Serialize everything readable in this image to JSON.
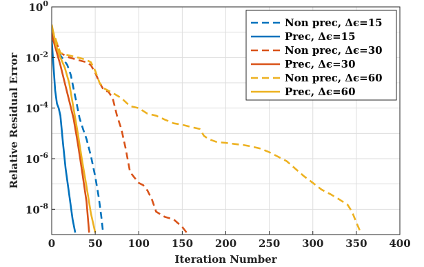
{
  "chart_data": {
    "type": "line",
    "xlabel": "Iteration Number",
    "ylabel": "Relative Residual Error",
    "xlim": [
      0,
      400
    ],
    "ylim_exp": [
      -9,
      0
    ],
    "y_scale": "log",
    "grid": true,
    "legend_position": "top-right",
    "x_ticks": [
      "0",
      "50",
      "100",
      "150",
      "200",
      "250",
      "300",
      "350",
      "400"
    ],
    "y_ticks": [
      {
        "base": "10",
        "exp": "0"
      },
      {
        "base": "10",
        "exp": "-2"
      },
      {
        "base": "10",
        "exp": "-4"
      },
      {
        "base": "10",
        "exp": "-6"
      },
      {
        "base": "10",
        "exp": "-8"
      }
    ],
    "series": [
      {
        "name": "Non prec, Δϵ=15",
        "color": "#0072BD",
        "dash": true,
        "points": [
          [
            0,
            0.1
          ],
          [
            3,
            0.04
          ],
          [
            6,
            0.02
          ],
          [
            10,
            0.012
          ],
          [
            14,
            0.008
          ],
          [
            18,
            0.005
          ],
          [
            22,
            0.002
          ],
          [
            25,
            0.0006
          ],
          [
            28,
            0.0002
          ],
          [
            32,
            4e-05
          ],
          [
            36,
            1.5e-05
          ],
          [
            40,
            6e-06
          ],
          [
            45,
            1.3e-06
          ],
          [
            50,
            2e-07
          ],
          [
            54,
            3e-08
          ],
          [
            57,
            5e-09
          ],
          [
            59,
            1.2e-09
          ]
        ]
      },
      {
        "name": "Prec,  Δϵ=15",
        "color": "#0072BD",
        "dash": false,
        "points": [
          [
            0,
            0.05
          ],
          [
            2,
            0.005
          ],
          [
            4,
            0.0005
          ],
          [
            6,
            0.00015
          ],
          [
            8,
            0.0001
          ],
          [
            10,
            5e-05
          ],
          [
            13,
            4e-06
          ],
          [
            16,
            4e-07
          ],
          [
            20,
            4e-08
          ],
          [
            24,
            4e-09
          ],
          [
            27,
            1.2e-09
          ]
        ]
      },
      {
        "name": "Non prec, Δϵ=30",
        "color": "#D95319",
        "dash": true,
        "points": [
          [
            0,
            0.12
          ],
          [
            10,
            0.015
          ],
          [
            20,
            0.01
          ],
          [
            30,
            0.008
          ],
          [
            40,
            0.0065
          ],
          [
            45,
            0.005
          ],
          [
            50,
            0.0025
          ],
          [
            55,
            0.001
          ],
          [
            60,
            0.0005
          ],
          [
            65,
            0.00045
          ],
          [
            70,
            0.00025
          ],
          [
            75,
            5e-05
          ],
          [
            80,
            1.5e-05
          ],
          [
            85,
            2.5e-06
          ],
          [
            90,
            3e-07
          ],
          [
            95,
            1.8e-07
          ],
          [
            100,
            1.1e-07
          ],
          [
            105,
            9e-08
          ],
          [
            110,
            5.5e-08
          ],
          [
            115,
            2.5e-08
          ],
          [
            120,
            8e-09
          ],
          [
            130,
            5e-09
          ],
          [
            140,
            4e-09
          ],
          [
            150,
            2e-09
          ],
          [
            155,
            1.2e-09
          ]
        ]
      },
      {
        "name": "Prec, Δϵ=30",
        "color": "#D95319",
        "dash": false,
        "points": [
          [
            0,
            0.08
          ],
          [
            5,
            0.02
          ],
          [
            10,
            0.005
          ],
          [
            15,
            0.001
          ],
          [
            20,
            0.0002
          ],
          [
            25,
            4e-05
          ],
          [
            30,
            4e-06
          ],
          [
            35,
            3e-07
          ],
          [
            40,
            2e-08
          ],
          [
            43,
            1.2e-09
          ]
        ]
      },
      {
        "name": "Non prec, Δϵ=60",
        "color": "#EDB120",
        "dash": true,
        "points": [
          [
            0,
            0.15
          ],
          [
            10,
            0.015
          ],
          [
            20,
            0.012
          ],
          [
            30,
            0.01
          ],
          [
            40,
            0.008
          ],
          [
            45,
            0.0065
          ],
          [
            50,
            0.003
          ],
          [
            55,
            0.001
          ],
          [
            60,
            0.0006
          ],
          [
            70,
            0.0004
          ],
          [
            80,
            0.00025
          ],
          [
            90,
            0.00012
          ],
          [
            100,
            0.0001
          ],
          [
            110,
            6e-05
          ],
          [
            120,
            5e-05
          ],
          [
            130,
            3.5e-05
          ],
          [
            140,
            2.5e-05
          ],
          [
            150,
            2.2e-05
          ],
          [
            160,
            1.8e-05
          ],
          [
            170,
            1.5e-05
          ],
          [
            175,
            8e-06
          ],
          [
            180,
            6e-06
          ],
          [
            190,
            4.5e-06
          ],
          [
            200,
            4.2e-06
          ],
          [
            210,
            3.8e-06
          ],
          [
            220,
            3.5e-06
          ],
          [
            230,
            3e-06
          ],
          [
            240,
            2.5e-06
          ],
          [
            250,
            1.8e-06
          ],
          [
            260,
            1.2e-06
          ],
          [
            270,
            8e-07
          ],
          [
            280,
            4e-07
          ],
          [
            290,
            2e-07
          ],
          [
            300,
            1.1e-07
          ],
          [
            310,
            6e-08
          ],
          [
            320,
            4e-08
          ],
          [
            330,
            2.5e-08
          ],
          [
            340,
            1.5e-08
          ],
          [
            345,
            8e-09
          ],
          [
            350,
            3e-09
          ],
          [
            355,
            1.2e-09
          ]
        ]
      },
      {
        "name": "Prec, Δϵ=60",
        "color": "#EDB120",
        "dash": false,
        "points": [
          [
            0,
            0.2
          ],
          [
            5,
            0.03
          ],
          [
            10,
            0.01
          ],
          [
            15,
            0.004
          ],
          [
            20,
            0.001
          ],
          [
            25,
            0.0001
          ],
          [
            30,
            1e-05
          ],
          [
            35,
            8e-07
          ],
          [
            40,
            8e-08
          ],
          [
            45,
            7e-09
          ],
          [
            50,
            1.2e-09
          ]
        ]
      }
    ]
  }
}
